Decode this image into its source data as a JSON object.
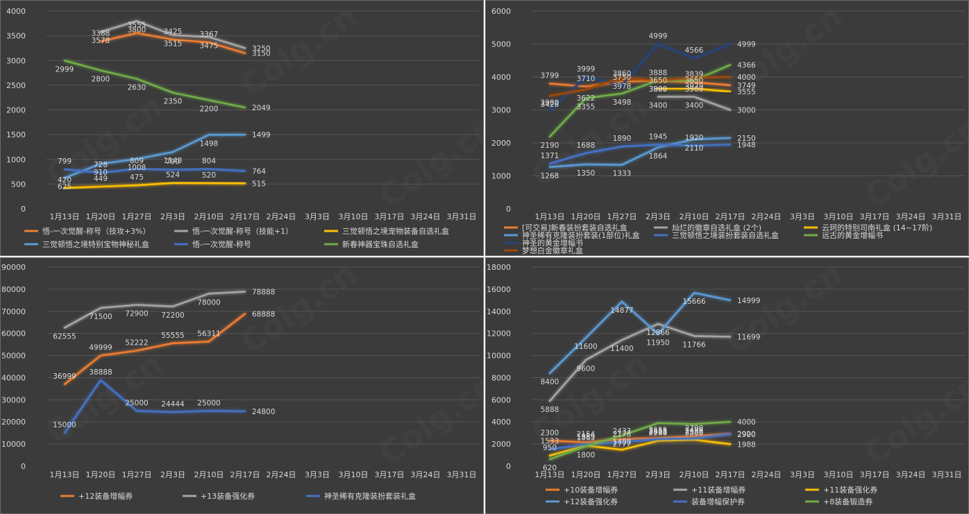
{
  "weeks": [
    "1月13日",
    "1月20日",
    "1月27日",
    "2月3日",
    "2月10日",
    "2月17日",
    "2月24日",
    "3月3日",
    "3月10日",
    "3月17日",
    "3月24日",
    "3月31日"
  ],
  "colors": {
    "orange": "#ed7d31",
    "gray": "#a5a5a5",
    "gold": "#ffc000",
    "lightblue": "#5b9bd5",
    "blue": "#4472c4",
    "green": "#70ad47",
    "navy": "#264478",
    "brown": "#9e480e"
  },
  "watermark": "Colg.cn",
  "chart_data": [
    {
      "type": "line",
      "ylim": [
        0,
        4000
      ],
      "yticks": [
        0,
        500,
        1000,
        1500,
        2000,
        2500,
        3000,
        3500,
        4000
      ],
      "legend_position": "bottom",
      "series": [
        {
          "name": "悟-一次觉醒-称号（技攻+3%）",
          "color": "#ed7d31",
          "values": [
            null,
            3388,
            3555,
            3425,
            3367,
            3150
          ]
        },
        {
          "name": "悟-一次觉醒-称号（技能+1）",
          "color": "#a5a5a5",
          "values": [
            null,
            3578,
            3800,
            3515,
            3475,
            3250
          ]
        },
        {
          "name": "三觉顿悟之境宠物装备自选礼盒",
          "color": "#ffc000",
          "values": [
            420,
            449,
            475,
            524,
            520,
            515
          ]
        },
        {
          "name": "三觉顿悟之境特别宝物神秘礼盒",
          "color": "#5b9bd5",
          "values": [
            625,
            910,
            1008,
            1148,
            1498,
            1499
          ]
        },
        {
          "name": "悟-一次觉醒-称号",
          "color": "#4472c4",
          "values": [
            799,
            728,
            809,
            790,
            804,
            764
          ]
        },
        {
          "name": "新春神器宝珠自选礼盒",
          "color": "#70ad47",
          "values": [
            2999,
            2800,
            2630,
            2350,
            2200,
            2049
          ]
        }
      ]
    },
    {
      "type": "line",
      "ylim": [
        0,
        6000
      ],
      "yticks": [
        0,
        1000,
        2000,
        3000,
        4000,
        5000,
        6000
      ],
      "legend_position": "bottom",
      "series": [
        {
          "name": "[可交易]新春装扮套装自选礼盒",
          "color": "#ed7d31",
          "values": [
            3799,
            3710,
            3860,
            3888,
            3839,
            3749
          ]
        },
        {
          "name": "灿烂的徽章自选礼盒 (2个)",
          "color": "#a5a5a5",
          "values": [
            null,
            null,
            null,
            3400,
            3400,
            3000
          ]
        },
        {
          "name": "云珂的特别司南礼盒 (14~17阶)",
          "color": "#ffc000",
          "values": [
            null,
            null,
            null,
            3650,
            3650,
            3555
          ]
        },
        {
          "name": "神圣稀有克隆装扮套装(1部位)礼盒",
          "color": "#5b9bd5",
          "values": [
            1268,
            1350,
            1333,
            1864,
            2110,
            2150
          ]
        },
        {
          "name": "三觉顿悟之境装扮套装自选礼盒",
          "color": "#4472c4",
          "values": [
            1371,
            1688,
            1890,
            1945,
            1920,
            1948
          ]
        },
        {
          "name": "远古的黄金增幅书",
          "color": "#70ad47",
          "values": [
            2190,
            3355,
            3498,
            3899,
            3900,
            4366
          ]
        },
        {
          "name": "神圣的黄金增幅书",
          "color": "#264478",
          "values": [
            2980,
            3999,
            3750,
            4999,
            4566,
            4999
          ]
        },
        {
          "name": "梦想白金徽章礼盒",
          "color": "#9e480e",
          "values": [
            3428,
            3622,
            3978,
            3900,
            3979,
            4000
          ]
        }
      ]
    },
    {
      "type": "line",
      "ylim": [
        0,
        90000
      ],
      "yticks": [
        0,
        10000,
        20000,
        30000,
        40000,
        50000,
        60000,
        70000,
        80000,
        90000
      ],
      "legend_position": "bottom",
      "series": [
        {
          "name": "+12装备增幅券",
          "color": "#ed7d31",
          "values": [
            36999,
            49999,
            52222,
            55555,
            56311,
            68888
          ]
        },
        {
          "name": "+13装备强化券",
          "color": "#a5a5a5",
          "values": [
            62555,
            71500,
            72900,
            72200,
            78000,
            78888
          ]
        },
        {
          "name": "神圣稀有克隆装扮套装礼盒",
          "color": "#4472c4",
          "values": [
            15000,
            38888,
            25000,
            24444,
            25000,
            24800
          ]
        }
      ]
    },
    {
      "type": "line",
      "ylim": [
        0,
        18000
      ],
      "yticks": [
        0,
        2000,
        4000,
        6000,
        8000,
        10000,
        12000,
        14000,
        16000,
        18000
      ],
      "legend_position": "bottom",
      "series": [
        {
          "name": "+10装备增幅券",
          "color": "#ed7d31",
          "values": [
            2300,
            2154,
            2433,
            2555,
            2700,
            2920
          ]
        },
        {
          "name": "+11装备增幅券",
          "color": "#a5a5a5",
          "values": [
            5888,
            9600,
            11400,
            12866,
            11766,
            11699
          ]
        },
        {
          "name": "+11装备强化券",
          "color": "#ffc000",
          "values": [
            950,
            1865,
            1488,
            2288,
            2388,
            1988
          ]
        },
        {
          "name": "+12装备强化券",
          "color": "#5b9bd5",
          "values": [
            8400,
            11600,
            14877,
            11950,
            15666,
            14999
          ]
        },
        {
          "name": "装备增幅保护券",
          "color": "#4472c4",
          "values": [
            1533,
            1959,
            2178,
            2453,
            2496,
            2900
          ]
        },
        {
          "name": "+8装备锻造券",
          "color": "#70ad47",
          "values": [
            620,
            1800,
            2777,
            3888,
            3800,
            4000
          ]
        }
      ]
    }
  ]
}
